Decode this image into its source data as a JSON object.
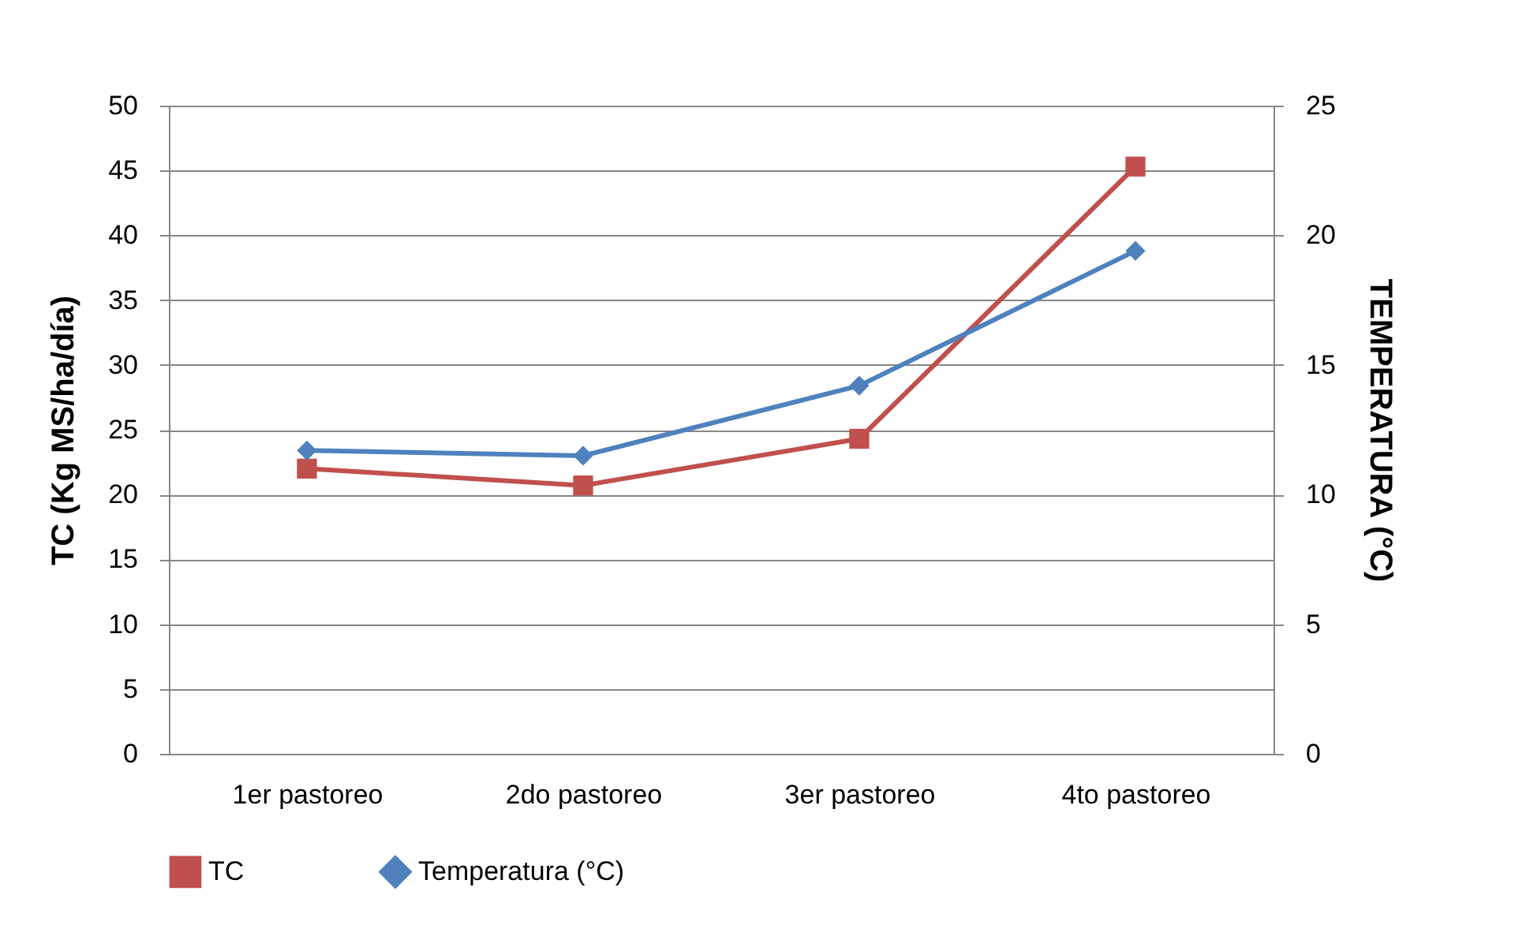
{
  "chart_data": {
    "type": "line",
    "ylabel": "TC (Kg MS/ha/día)",
    "y2label": "TEMPERATURA (°C)",
    "categories": [
      "1er pastoreo",
      "2do pastoreo",
      "3er pastoreo",
      "4to pastoreo"
    ],
    "series": [
      {
        "name": "TC",
        "color": "#c0504d",
        "marker": "square",
        "values": [
          22.0,
          20.7,
          24.3,
          45.3
        ]
      },
      {
        "name": "Temperatura (°C)",
        "color": "#4f81bd",
        "marker": "diamond",
        "axis": "y2",
        "values": [
          11.7,
          11.5,
          14.2,
          19.4
        ]
      }
    ],
    "ylim": [
      0,
      50
    ],
    "yticks": [
      0,
      5,
      10,
      15,
      20,
      25,
      30,
      35,
      40,
      45,
      50
    ],
    "y2lim": [
      0,
      25
    ],
    "y2ticks": [
      0,
      5,
      10,
      15,
      20,
      25
    ],
    "grid": "y",
    "legend": "bottom",
    "line_style": "solid"
  }
}
